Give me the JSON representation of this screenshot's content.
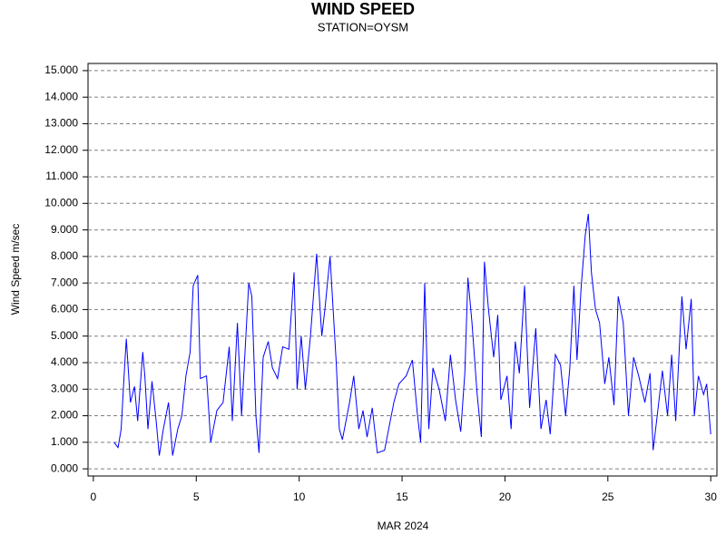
{
  "chart_data": {
    "type": "line",
    "title": "WIND SPEED",
    "subtitle": "STATION=OYSM",
    "x_label": "MAR 2024",
    "y_label": "Wind Speed m/sec",
    "x": [
      1.0,
      1.2,
      1.35,
      1.5,
      1.6,
      1.8,
      2.0,
      2.15,
      2.4,
      2.5,
      2.65,
      2.85,
      3.05,
      3.2,
      3.4,
      3.65,
      3.85,
      4.1,
      4.3,
      4.5,
      4.7,
      4.85,
      5.07,
      5.2,
      5.5,
      5.7,
      6.0,
      6.3,
      6.6,
      6.75,
      7.0,
      7.2,
      7.55,
      7.7,
      7.9,
      8.05,
      8.25,
      8.5,
      8.7,
      8.95,
      9.2,
      9.5,
      9.75,
      9.9,
      10.1,
      10.3,
      10.55,
      10.85,
      11.1,
      11.25,
      11.5,
      11.8,
      11.95,
      12.1,
      12.45,
      12.65,
      12.9,
      13.1,
      13.3,
      13.55,
      13.8,
      14.15,
      14.35,
      14.6,
      14.85,
      15.2,
      15.5,
      15.75,
      15.9,
      16.1,
      16.3,
      16.5,
      16.8,
      17.1,
      17.35,
      17.6,
      17.85,
      18.05,
      18.2,
      18.4,
      18.65,
      18.85,
      19.0,
      19.2,
      19.45,
      19.65,
      19.8,
      20.1,
      20.3,
      20.5,
      20.7,
      20.95,
      21.2,
      21.5,
      21.75,
      22.0,
      22.2,
      22.45,
      22.7,
      22.95,
      23.15,
      23.35,
      23.5,
      23.7,
      23.9,
      24.05,
      24.2,
      24.4,
      24.6,
      24.85,
      25.05,
      25.3,
      25.5,
      25.75,
      26.0,
      26.25,
      26.5,
      26.8,
      27.05,
      27.2,
      27.4,
      27.65,
      27.9,
      28.1,
      28.3,
      28.5,
      28.6,
      28.8,
      29.05,
      29.2,
      29.4,
      29.65,
      29.8,
      30.0
    ],
    "series": [
      {
        "name": "Wind Speed",
        "color": "#0000ff",
        "values": [
          1.0,
          0.8,
          1.5,
          3.6,
          4.9,
          2.5,
          3.1,
          1.8,
          4.4,
          3.5,
          1.5,
          3.3,
          1.8,
          0.5,
          1.5,
          2.5,
          0.5,
          1.5,
          2.0,
          3.5,
          4.4,
          6.9,
          7.3,
          3.4,
          3.5,
          1.0,
          2.2,
          2.5,
          4.6,
          1.8,
          5.5,
          2.0,
          7.0,
          6.5,
          2.0,
          0.6,
          4.2,
          4.8,
          3.8,
          3.4,
          4.6,
          4.5,
          7.4,
          3.0,
          5.0,
          3.0,
          5.0,
          8.1,
          5.0,
          6.0,
          8.0,
          4.0,
          1.5,
          1.1,
          2.5,
          3.5,
          1.5,
          2.2,
          1.2,
          2.3,
          0.6,
          0.7,
          1.5,
          2.5,
          3.2,
          3.5,
          4.1,
          2.0,
          1.0,
          7.0,
          1.5,
          3.8,
          3.0,
          1.8,
          4.3,
          2.6,
          1.4,
          3.6,
          7.2,
          5.5,
          2.8,
          1.2,
          7.8,
          6.0,
          4.2,
          5.8,
          2.6,
          3.5,
          1.5,
          4.8,
          3.6,
          6.9,
          2.3,
          5.3,
          1.5,
          2.6,
          1.3,
          4.3,
          3.9,
          2.0,
          3.8,
          6.9,
          4.1,
          6.8,
          8.8,
          9.6,
          7.4,
          6.0,
          5.5,
          3.2,
          4.2,
          2.4,
          6.5,
          5.5,
          2.0,
          4.2,
          3.5,
          2.5,
          3.6,
          0.7,
          2.0,
          3.7,
          2.0,
          4.3,
          1.8,
          5.0,
          6.5,
          4.5,
          6.4,
          2.0,
          3.5,
          2.8,
          3.2,
          1.3
        ]
      }
    ],
    "xlim": [
      -0.26,
      30.3
    ],
    "xticks": [
      0,
      5,
      10,
      15,
      20,
      25,
      30
    ],
    "ylim": [
      -0.27,
      15.27
    ],
    "yticks": [
      {
        "value": 0,
        "label": "0.000"
      },
      {
        "value": 1,
        "label": "1.000"
      },
      {
        "value": 2,
        "label": "2.000"
      },
      {
        "value": 3,
        "label": "3.000"
      },
      {
        "value": 4,
        "label": "4.000"
      },
      {
        "value": 5,
        "label": "5.000"
      },
      {
        "value": 6,
        "label": "6.000"
      },
      {
        "value": 7,
        "label": "7.000"
      },
      {
        "value": 8,
        "label": "8.000"
      },
      {
        "value": 9,
        "label": "9.000"
      },
      {
        "value": 10,
        "label": "10.000"
      },
      {
        "value": 11,
        "label": "11.000"
      },
      {
        "value": 12,
        "label": "12.000"
      },
      {
        "value": 13,
        "label": "13.000"
      },
      {
        "value": 14,
        "label": "14.000"
      },
      {
        "value": 15,
        "label": "15.000"
      }
    ],
    "grid": true
  }
}
